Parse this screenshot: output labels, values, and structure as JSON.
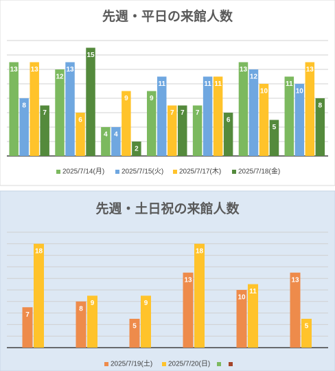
{
  "chart_data": [
    {
      "type": "bar",
      "title": "先週・平日の来館人数",
      "categories": [
        null,
        null,
        null,
        null,
        null,
        null,
        null
      ],
      "series": [
        {
          "name": "2025/7/14(月)",
          "color": "#7cb95f",
          "values": [
            13,
            12,
            4,
            9,
            7,
            13,
            11
          ]
        },
        {
          "name": "2025/7/15(火)",
          "color": "#6fa7e0",
          "values": [
            8,
            13,
            4,
            11,
            11,
            12,
            10
          ]
        },
        {
          "name": "2025/7/17(木)",
          "color": "#ffc32b",
          "values": [
            13,
            6,
            9,
            7,
            11,
            10,
            13
          ]
        },
        {
          "name": "2025/7/18(金)",
          "color": "#548a3c",
          "values": [
            7,
            15,
            2,
            7,
            6,
            5,
            8
          ]
        }
      ],
      "ylim": [
        0,
        16
      ],
      "yticks": [
        0,
        2,
        4,
        6,
        8,
        10,
        12,
        14,
        16
      ],
      "grid": true,
      "legend": "bottom"
    },
    {
      "type": "bar",
      "title": "先週・土日祝の来館人数",
      "categories": [
        null,
        null,
        null,
        null,
        null,
        null
      ],
      "series": [
        {
          "name": "2025/7/19(土)",
          "color": "#ee8b4b",
          "values": [
            7,
            8,
            5,
            13,
            10,
            13
          ]
        },
        {
          "name": "2025/7/20(日)",
          "color": "#ffc32b",
          "values": [
            18,
            9,
            9,
            18,
            11,
            5
          ]
        },
        {
          "name": null,
          "color": "#7cb95f",
          "values": [
            null,
            null,
            null,
            null,
            null,
            null
          ]
        },
        {
          "name": null,
          "color": "#a5452a",
          "values": [
            null,
            null,
            null,
            null,
            null,
            null
          ]
        }
      ],
      "ylim": [
        0,
        20
      ],
      "yticks": [
        0,
        2,
        4,
        6,
        8,
        10,
        12,
        14,
        16,
        18,
        20
      ],
      "grid": true,
      "legend": "bottom"
    }
  ]
}
